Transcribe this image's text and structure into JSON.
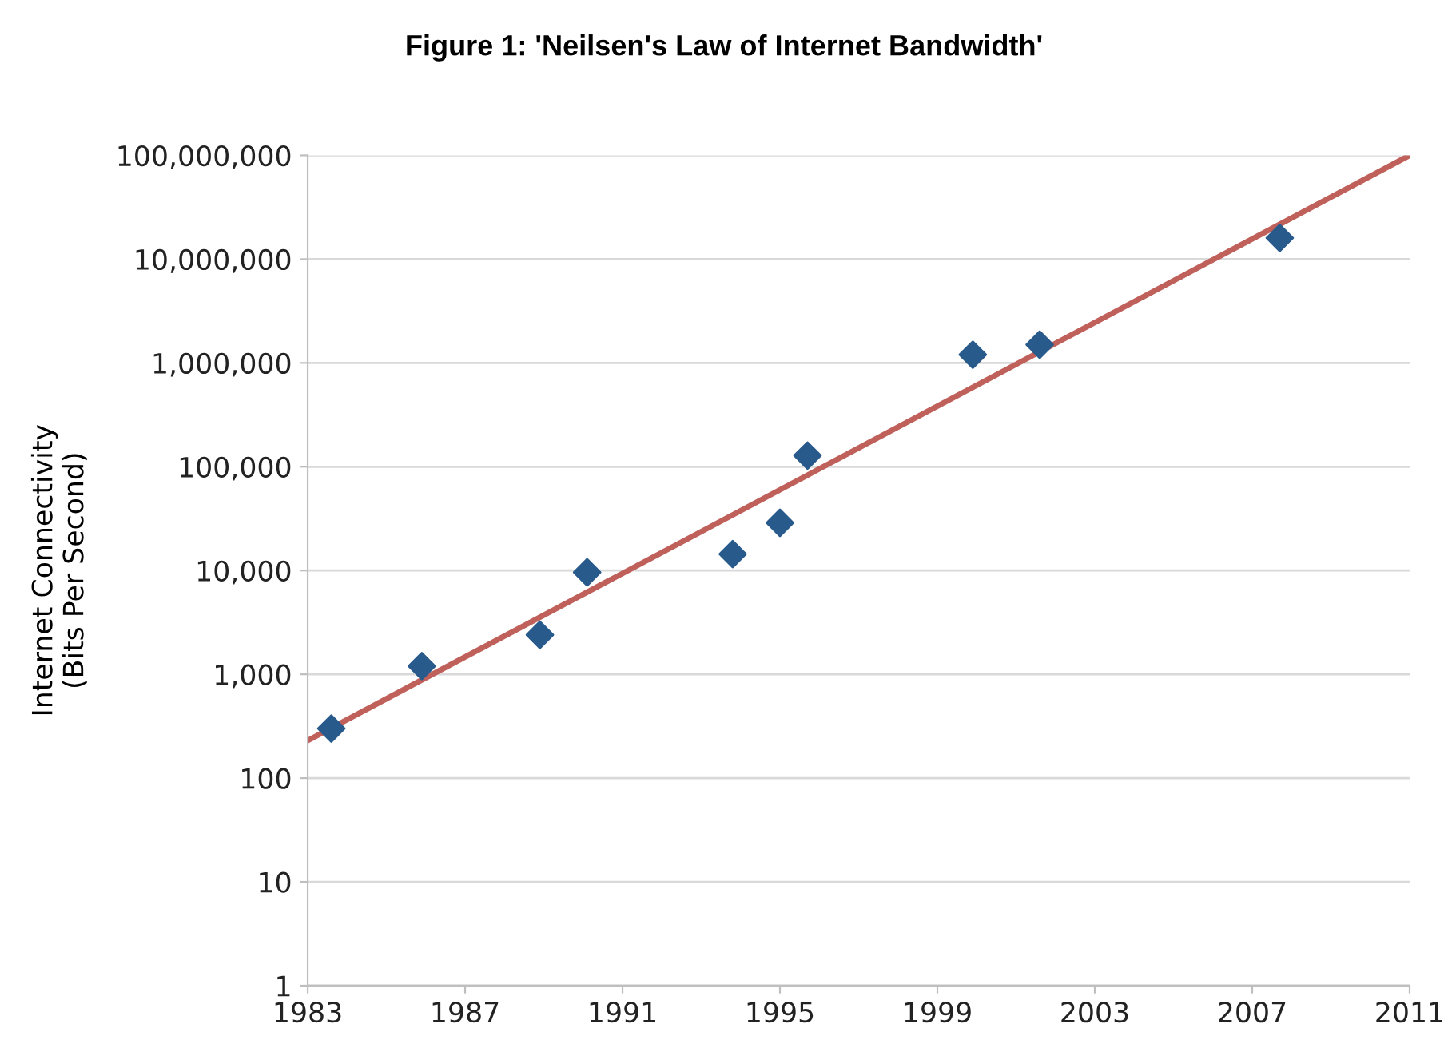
{
  "chart_data": {
    "type": "scatter",
    "title": "Figure 1: 'Neilsen's Law of Internet Bandwidth'",
    "ylabel": "Internet Connectivity\n(Bits Per Second)",
    "series": [
      {
        "color": "#285a8c",
        "marker": "diamond",
        "x": [
          1983.6,
          1985.9,
          1988.9,
          1990.1,
          1993.8,
          1995.0,
          1995.7,
          1999.9,
          2001.6,
          2007.7
        ],
        "values": [
          300,
          1200,
          2400,
          9600,
          14400,
          28800,
          128000,
          1200000,
          1500000,
          16000000
        ]
      },
      {
        "type": "line",
        "color": "#c0605a",
        "line_style": "solid",
        "x": [
          1983,
          2011
        ],
        "values": [
          230,
          100000000
        ]
      }
    ],
    "log": "y",
    "grid": "y",
    "xlim": [
      1983,
      2011
    ],
    "xticks": [
      1983,
      1987,
      1991,
      1995,
      1999,
      2003,
      2007,
      2011
    ],
    "ylim": [
      1,
      100000000
    ],
    "yticks": [
      {
        "value": 1,
        "label": "1"
      },
      {
        "value": 10,
        "label": "10"
      },
      {
        "value": 100,
        "label": "100"
      },
      {
        "value": 1000,
        "label": "1,000"
      },
      {
        "value": 10000,
        "label": "10,000"
      },
      {
        "value": 100000,
        "label": "100,000"
      },
      {
        "value": 1000000,
        "label": "1,000,000"
      },
      {
        "value": 10000000,
        "label": "10,000,000"
      },
      {
        "value": 100000000,
        "label": "100,000,000"
      }
    ]
  }
}
